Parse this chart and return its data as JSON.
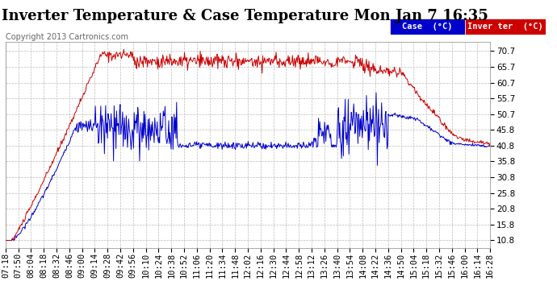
{
  "title": "Inverter Temperature & Case Temperature Mon Jan 7 16:35",
  "copyright": "Copyright 2013 Cartronics.com",
  "legend_case_label": "Case  (°C)",
  "legend_inverter_label": "Inver ter  (°C)",
  "case_color": "#0000cc",
  "inverter_color": "#cc0000",
  "bg_color": "#ffffff",
  "grid_color": "#bbbbbb",
  "yticks": [
    10.8,
    15.8,
    20.8,
    25.8,
    30.8,
    35.8,
    40.8,
    45.8,
    50.7,
    55.7,
    60.7,
    65.7,
    70.7
  ],
  "ymin": 8.5,
  "ymax": 73.5,
  "title_fontsize": 13,
  "copyright_fontsize": 7,
  "tick_fontsize": 7.5,
  "xtick_labels": [
    "07:18",
    "07:50",
    "08:04",
    "08:18",
    "08:32",
    "08:46",
    "09:00",
    "09:14",
    "09:28",
    "09:42",
    "09:56",
    "10:10",
    "10:24",
    "10:38",
    "10:52",
    "11:06",
    "11:20",
    "11:34",
    "11:48",
    "12:02",
    "12:16",
    "12:30",
    "12:44",
    "12:58",
    "13:12",
    "13:26",
    "13:40",
    "13:54",
    "14:08",
    "14:22",
    "14:36",
    "14:50",
    "15:04",
    "15:18",
    "15:32",
    "15:46",
    "16:00",
    "16:14",
    "16:28"
  ]
}
